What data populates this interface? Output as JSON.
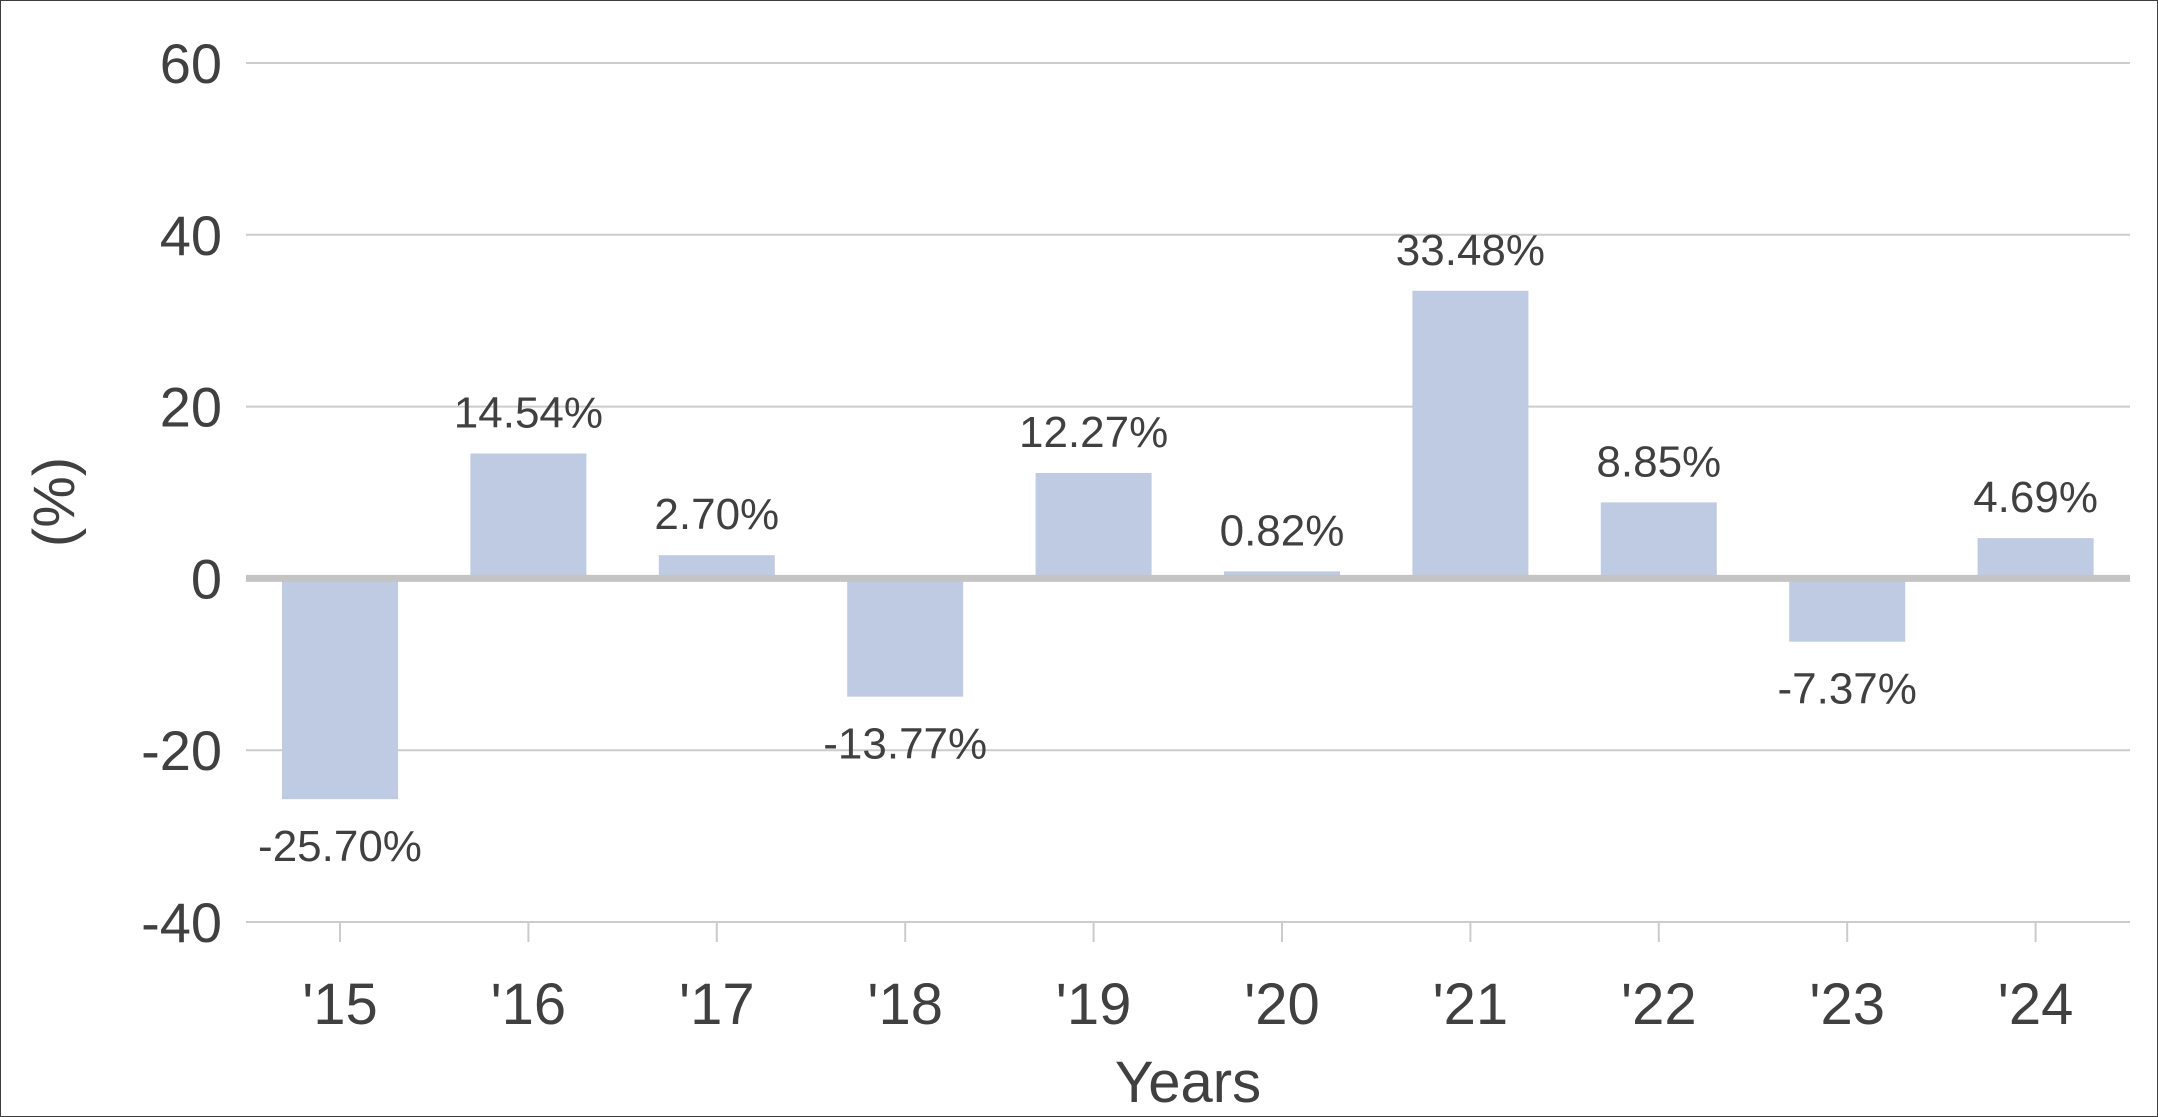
{
  "chart_data": {
    "type": "bar",
    "title": "",
    "xlabel": "Years",
    "ylabel": "(%)",
    "categories": [
      "'15",
      "'16",
      "'17",
      "'18",
      "'19",
      "'20",
      "'21",
      "'22",
      "'23",
      "'24"
    ],
    "values": [
      -25.7,
      14.54,
      2.7,
      -13.77,
      12.27,
      0.82,
      33.48,
      8.85,
      -7.37,
      4.69
    ],
    "value_labels": [
      "-25.70%",
      "14.54%",
      "2.70%",
      "-13.77%",
      "12.27%",
      "0.82%",
      "33.48%",
      "8.85%",
      "-7.37%",
      "4.69%"
    ],
    "ylim": [
      -40,
      60
    ],
    "yticks": [
      "60",
      "40",
      "20",
      "0",
      "-20",
      "-40"
    ],
    "ytick_values": [
      60,
      40,
      20,
      0,
      -20,
      -40
    ],
    "grid": true,
    "legend": "none",
    "colors": {
      "bar": "#bfcbe3",
      "grid": "#cccccc",
      "zero_line": "#c4c4c4",
      "text": "#404040",
      "border": "#3d3d3d"
    }
  }
}
